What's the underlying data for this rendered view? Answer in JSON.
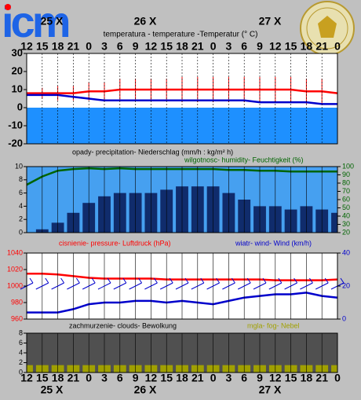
{
  "header": {
    "logo": "icm"
  },
  "time_axis": {
    "hours": [
      "12",
      "15",
      "18",
      "21",
      "0",
      "3",
      "6",
      "9",
      "12",
      "15",
      "18",
      "21",
      "0",
      "3",
      "6",
      "9",
      "12",
      "15",
      "18",
      "21",
      "0"
    ],
    "dates": [
      "25 X",
      "26 X",
      "27 X"
    ]
  },
  "chart_data": [
    {
      "type": "line",
      "title": "temperatura - temperature -Temperatur (° C)",
      "background": "#ffffff",
      "below_zero": "#1e90ff",
      "ylim": [
        -20,
        30
      ],
      "yticks": [
        30,
        20,
        10,
        0,
        -10,
        -20
      ],
      "series": [
        {
          "type": "line",
          "color": "#ff0000",
          "values": [
            8,
            8,
            8,
            8,
            9,
            9,
            10,
            10,
            10,
            10,
            10,
            10,
            10,
            10,
            10,
            10,
            10,
            10,
            9,
            9,
            8
          ],
          "errors": [
            2,
            3,
            4,
            4,
            5,
            5,
            6,
            6,
            6,
            6,
            7,
            7,
            7,
            7,
            7,
            7,
            7,
            7,
            7,
            7,
            7
          ]
        },
        {
          "type": "line",
          "color": "#0000cc",
          "values": [
            7,
            7,
            7,
            6,
            5,
            4,
            4,
            4,
            4,
            4,
            4,
            4,
            4,
            4,
            4,
            3,
            3,
            3,
            3,
            2,
            2
          ]
        }
      ]
    },
    {
      "type": "line",
      "background": "#46a0f0",
      "ylim": [
        0,
        10
      ],
      "yticks": [
        0,
        2,
        4,
        6,
        8,
        10
      ],
      "y2lim": [
        20,
        100
      ],
      "y2ticks": [
        20,
        30,
        40,
        50,
        60,
        70,
        80,
        90,
        100
      ],
      "series": [
        {
          "type": "bar",
          "name": "opady- precipitation- Niederschlag (mm/h : kg/m² h)",
          "color": "#102c6c",
          "legend_color": "#000000",
          "values": [
            0,
            0.5,
            1.5,
            3,
            4.5,
            5.5,
            6,
            6,
            6,
            6.5,
            7,
            7,
            7,
            6,
            5,
            4,
            4,
            3.5,
            4,
            3.5,
            3
          ]
        },
        {
          "type": "line",
          "axis": "y2",
          "name": "wilgotnosc- humidity- Feuchtigkeit (%)",
          "color": "#006400",
          "values": [
            78,
            88,
            95,
            97,
            98,
            97,
            98,
            97,
            97,
            97,
            97,
            97,
            97,
            96,
            96,
            95,
            95,
            94,
            94,
            94,
            94
          ]
        }
      ]
    },
    {
      "type": "line",
      "background": "#ffffff",
      "ylim": [
        960,
        1040
      ],
      "yticks": [
        960,
        980,
        1000,
        1020,
        1040
      ],
      "y2lim": [
        0,
        40
      ],
      "y2ticks": [
        0,
        20,
        40
      ],
      "series": [
        {
          "type": "line",
          "name": "cisnienie- pressure- Luftdruck (hPa)",
          "color": "#ff0000",
          "values": [
            1015,
            1015,
            1014,
            1012,
            1010,
            1009,
            1009,
            1009,
            1009,
            1008,
            1008,
            1008,
            1008,
            1008,
            1008,
            1008,
            1007,
            1007,
            1007,
            1007,
            1008
          ]
        },
        {
          "type": "line",
          "axis": "y2",
          "name": "wiatr- wind- Wind (km/h)",
          "color": "#0000cc",
          "values": [
            4,
            4,
            4,
            6,
            9,
            10,
            10,
            11,
            11,
            10,
            11,
            10,
            9,
            11,
            13,
            14,
            15,
            15,
            16,
            14,
            13
          ]
        }
      ]
    },
    {
      "type": "line",
      "background": "#505050",
      "ylim": [
        0,
        8
      ],
      "yticks": [
        0,
        2,
        4,
        6,
        8
      ],
      "series": [
        {
          "type": "bar",
          "name": "zachmurzenie- clouds- Bewolkung",
          "color": "#505050",
          "legend_color": "#000000",
          "values": [
            8,
            8,
            8,
            8,
            8,
            8,
            8,
            8,
            8,
            8,
            8,
            8,
            8,
            8,
            8,
            8,
            8,
            8,
            8,
            8,
            8
          ]
        },
        {
          "type": "bar",
          "name": "mgla- fog- Nebel",
          "color": "#a0a000",
          "values": [
            1.5,
            1.5,
            1.5,
            1.5,
            1.5,
            1.5,
            1.5,
            1.5,
            1.5,
            1.5,
            1.5,
            1.5,
            1.5,
            1.5,
            1.5,
            1.5,
            1.5,
            1.5,
            1.5,
            1.5,
            1.5
          ]
        }
      ]
    }
  ]
}
